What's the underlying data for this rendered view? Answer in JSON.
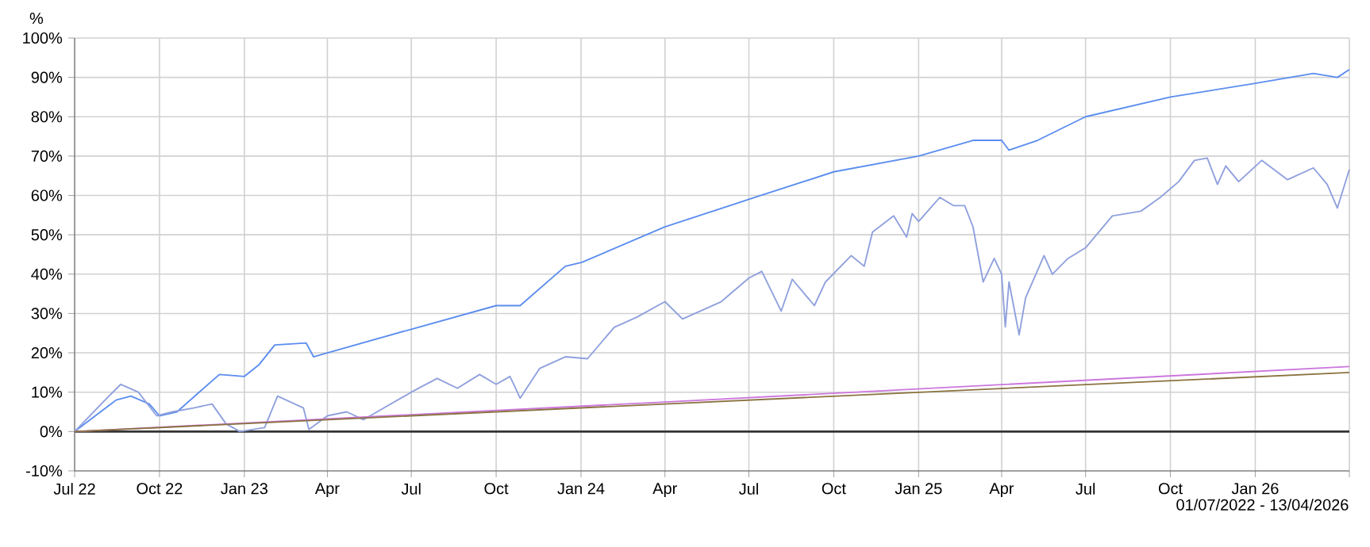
{
  "chart_data": {
    "type": "line",
    "ylabel": "%",
    "annotations": [
      "01/07/2022 - 13/04/2026"
    ],
    "xlim": [
      "2022-07-01",
      "2026-04-13"
    ],
    "xticks": [
      {
        "value": "2022-07-01",
        "label": "Jul 22"
      },
      {
        "value": "2022-10-01",
        "label": "Oct 22"
      },
      {
        "value": "2023-01-01",
        "label": "Jan 23"
      },
      {
        "value": "2023-04-01",
        "label": "Apr"
      },
      {
        "value": "2023-07-01",
        "label": "Jul"
      },
      {
        "value": "2023-10-01",
        "label": "Oct"
      },
      {
        "value": "2024-01-01",
        "label": "Jan 24"
      },
      {
        "value": "2024-04-01",
        "label": "Apr"
      },
      {
        "value": "2024-07-01",
        "label": "Jul"
      },
      {
        "value": "2024-10-01",
        "label": "Oct"
      },
      {
        "value": "2025-01-01",
        "label": "Jan 25"
      },
      {
        "value": "2025-04-01",
        "label": "Apr"
      },
      {
        "value": "2025-07-01",
        "label": "Jul"
      },
      {
        "value": "2025-10-01",
        "label": "Oct"
      },
      {
        "value": "2026-01-01",
        "label": "Jan 26"
      },
      {
        "value": "2026-04-13",
        "label": null
      }
    ],
    "ylim": [
      -10,
      100
    ],
    "yticks": [
      {
        "value": -10,
        "label": "-10%"
      },
      {
        "value": 0,
        "label": "0%"
      },
      {
        "value": 10,
        "label": "10%"
      },
      {
        "value": 20,
        "label": "20%"
      },
      {
        "value": 30,
        "label": "30%"
      },
      {
        "value": 40,
        "label": "40%"
      },
      {
        "value": 50,
        "label": "50%"
      },
      {
        "value": 60,
        "label": "60%"
      },
      {
        "value": 70,
        "label": "70%"
      },
      {
        "value": 80,
        "label": "80%"
      },
      {
        "value": 90,
        "label": "90%"
      },
      {
        "value": 100,
        "label": "100%"
      }
    ],
    "grid": true,
    "line_style": "solid",
    "marker": "none",
    "ref_lines": [
      {
        "axis": "y",
        "value": 0,
        "color": "#333333"
      }
    ],
    "series": [
      {
        "color": "#5b8def",
        "x": [
          "2022-07-01",
          "2022-08-15",
          "2022-08-31",
          "2022-09-20",
          "2022-10-01",
          "2022-10-20",
          "2022-11-13",
          "2022-12-05",
          "2023-01-01",
          "2023-01-17",
          "2023-02-03",
          "2023-03-09",
          "2023-03-17",
          "2023-04-01",
          "2023-07-01",
          "2023-10-01",
          "2023-10-27",
          "2023-12-15",
          "2024-01-02",
          "2024-04-01",
          "2024-07-01",
          "2024-10-01",
          "2025-01-01",
          "2025-03-01",
          "2025-04-01",
          "2025-04-09",
          "2025-05-10",
          "2025-07-01",
          "2025-10-01",
          "2026-01-01",
          "2026-03-05",
          "2026-03-31",
          "2026-04-13"
        ],
        "values": [
          0,
          8,
          9,
          7,
          4,
          5,
          10,
          14.5,
          14,
          17,
          22,
          22.5,
          19,
          20,
          26,
          32,
          32,
          42,
          43,
          52,
          59,
          66,
          70,
          74,
          74,
          71.5,
          74,
          80,
          85,
          88.5,
          91,
          90,
          92
        ]
      },
      {
        "color": "#8fa0dd",
        "x": [
          "2022-07-01",
          "2022-08-03",
          "2022-08-20",
          "2022-09-08",
          "2022-09-28",
          "2022-10-15",
          "2022-11-07",
          "2022-11-27",
          "2022-12-12",
          "2022-12-27",
          "2023-01-23",
          "2023-02-06",
          "2023-03-06",
          "2023-03-12",
          "2023-04-01",
          "2023-04-22",
          "2023-05-10",
          "2023-07-01",
          "2023-07-29",
          "2023-08-20",
          "2023-09-13",
          "2023-10-01",
          "2023-10-16",
          "2023-10-27",
          "2023-11-17",
          "2023-12-15",
          "2024-01-08",
          "2024-02-06",
          "2024-03-01",
          "2024-04-01",
          "2024-04-20",
          "2024-06-01",
          "2024-07-01",
          "2024-07-15",
          "2024-08-05",
          "2024-08-17",
          "2024-09-10",
          "2024-09-22",
          "2024-10-20",
          "2024-11-03",
          "2024-11-12",
          "2024-12-05",
          "2024-12-19",
          "2024-12-25",
          "2025-01-01",
          "2025-01-24",
          "2025-02-08",
          "2025-02-20",
          "2025-03-01",
          "2025-03-12",
          "2025-03-24",
          "2025-04-01",
          "2025-04-05",
          "2025-04-09",
          "2025-04-20",
          "2025-04-27",
          "2025-05-17",
          "2025-05-26",
          "2025-06-12",
          "2025-07-01",
          "2025-07-30",
          "2025-08-30",
          "2025-09-20",
          "2025-10-10",
          "2025-10-27",
          "2025-11-10",
          "2025-11-21",
          "2025-11-30",
          "2025-12-14",
          "2026-01-08",
          "2026-02-05",
          "2026-03-05",
          "2026-03-20",
          "2026-03-31",
          "2026-04-13"
        ],
        "values": [
          0,
          8,
          12,
          10,
          4,
          5,
          6,
          7,
          2,
          0,
          1,
          9,
          6,
          0.5,
          4,
          5,
          3,
          10,
          13.5,
          11,
          14.5,
          12,
          14,
          8.5,
          16,
          19,
          18.5,
          26.5,
          29,
          33,
          28.6,
          33,
          39,
          40.7,
          30.6,
          38.7,
          32,
          38,
          44.7,
          42,
          50.7,
          54.8,
          49.4,
          55.4,
          53.4,
          59.5,
          57.4,
          57.4,
          52,
          38,
          44,
          40,
          26.6,
          38,
          24.6,
          34,
          44.7,
          40,
          44,
          46.7,
          54.8,
          56,
          59.5,
          63.5,
          68.9,
          69.5,
          62.8,
          67.5,
          63.5,
          68.9,
          64,
          67,
          62.8,
          56.8,
          66.6
        ]
      },
      {
        "color": "#cc77dd",
        "x": [
          "2022-07-01",
          "2024-04-01",
          "2026-04-13"
        ],
        "values": [
          0,
          7.5,
          16.5
        ]
      },
      {
        "color": "#8b7340",
        "x": [
          "2022-07-01",
          "2024-04-01",
          "2026-04-13"
        ],
        "values": [
          0,
          7,
          15
        ]
      }
    ]
  }
}
